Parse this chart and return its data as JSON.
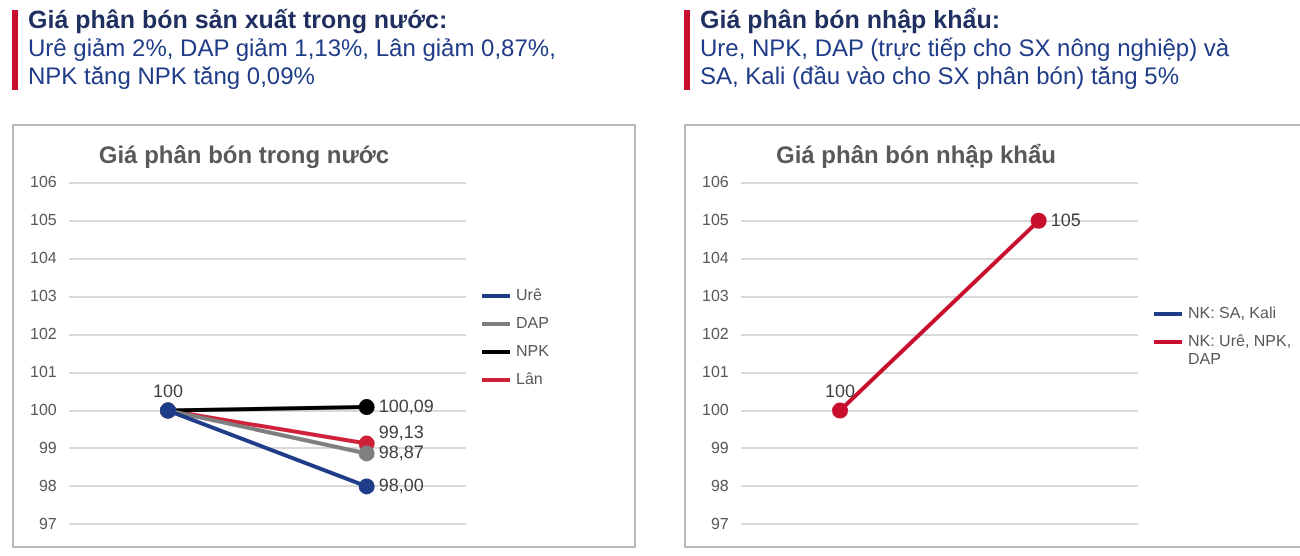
{
  "chart_data": [
    {
      "type": "line",
      "title": "Giá phân bón trong nước",
      "annotations": [
        "Giá phân bón sản xuất trong nước:",
        "Urê giảm 2%, DAP giảm 1,13%, Lân giảm 0,87%, NPK tăng NPK tăng 0,09%"
      ],
      "categories": [
        null,
        null
      ],
      "series": [
        {
          "name": "Urê",
          "color": "#1f3c88",
          "values": [
            100,
            98.0
          ],
          "value_labels": [
            null,
            "98,00"
          ]
        },
        {
          "name": "DAP",
          "color": "#7f7f7f",
          "values": [
            100,
            98.87
          ],
          "value_labels": [
            null,
            "98,87"
          ]
        },
        {
          "name": "NPK",
          "color": "#000000",
          "values": [
            100,
            100.09
          ],
          "value_labels": [
            "100",
            "100,09"
          ]
        },
        {
          "name": "Lân",
          "color": "#d0213a",
          "values": [
            100,
            99.13
          ],
          "value_labels": [
            null,
            "99,13"
          ]
        }
      ],
      "ylim": [
        97,
        106
      ],
      "yticks": [
        97,
        98,
        99,
        100,
        101,
        102,
        103,
        104,
        105,
        106
      ],
      "grid": "y",
      "legend": "right",
      "marker": "circle",
      "tick_labels": "y"
    },
    {
      "type": "line",
      "title": "Giá phân bón nhập khẩu",
      "annotations": [
        "Giá phân bón nhập khẩu:",
        "Ure, NPK, DAP (trực tiếp cho SX nông nghiệp) và SA, Kali (đầu vào cho SX phân bón) tăng 5%"
      ],
      "categories": [
        null,
        null
      ],
      "series": [
        {
          "name": "NK: SA, Kali",
          "color": "#1f3c88",
          "values": [
            null,
            null
          ]
        },
        {
          "name": "NK: Urê, NPK, DAP",
          "color": "#c8102e",
          "values": [
            100,
            105
          ],
          "value_labels": [
            "100",
            "105"
          ]
        }
      ],
      "ylim": [
        97,
        106
      ],
      "yticks": [
        97,
        98,
        99,
        100,
        101,
        102,
        103,
        104,
        105,
        106
      ],
      "grid": "y",
      "legend": "right",
      "marker": "circle",
      "tick_labels": "y"
    }
  ]
}
